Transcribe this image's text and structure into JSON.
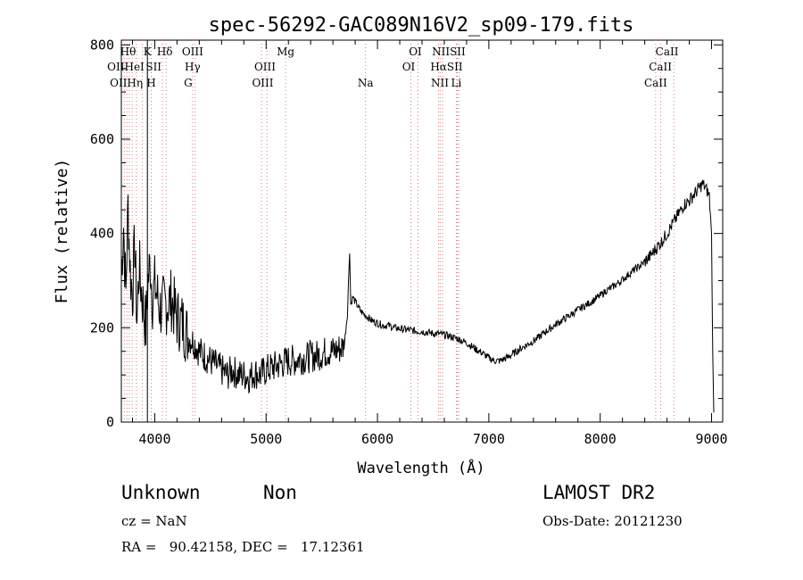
{
  "chart_data": {
    "type": "line",
    "title": "spec-56292-GAC089N16V2_sp09-179.fits",
    "xlabel": "Wavelength (Å)",
    "ylabel": "Flux (relative)",
    "xlim": [
      3700,
      9100
    ],
    "ylim": [
      0,
      810
    ],
    "x_ticks": [
      4000,
      5000,
      6000,
      7000,
      8000,
      9000
    ],
    "y_ticks": [
      0,
      200,
      400,
      600,
      800
    ],
    "grid": false,
    "series": [
      {
        "x": [
          3700,
          3720,
          3740,
          3760,
          3780,
          3800,
          3820,
          3840,
          3860,
          3880,
          3900,
          3920,
          3940,
          3960,
          3980,
          4000,
          4050,
          4100,
          4150,
          4200,
          4250,
          4300,
          4350,
          4400,
          4450,
          4500,
          4550,
          4600,
          4650,
          4700,
          4750,
          4800,
          4850,
          4900,
          4950,
          5000,
          5050,
          5100,
          5150,
          5200,
          5250,
          5300,
          5350,
          5400,
          5450,
          5500,
          5550,
          5600,
          5650,
          5700,
          5730,
          5750,
          5760,
          5780,
          5800,
          5850,
          5900,
          5950,
          6000,
          6050,
          6100,
          6150,
          6200,
          6250,
          6300,
          6350,
          6400,
          6450,
          6500,
          6550,
          6600,
          6650,
          6700,
          6750,
          6800,
          6850,
          6900,
          6950,
          7000,
          7050,
          7100,
          7150,
          7200,
          7250,
          7300,
          7350,
          7400,
          7450,
          7500,
          7550,
          7600,
          7650,
          7700,
          7750,
          7800,
          7850,
          7900,
          7950,
          8000,
          8050,
          8100,
          8150,
          8200,
          8250,
          8300,
          8350,
          8400,
          8450,
          8500,
          8550,
          8600,
          8650,
          8700,
          8750,
          8800,
          8850,
          8900,
          8920,
          8950,
          8980,
          9000,
          9010,
          9020
        ],
        "y": [
          310,
          420,
          270,
          460,
          320,
          270,
          380,
          220,
          330,
          280,
          240,
          200,
          300,
          340,
          260,
          290,
          240,
          250,
          260,
          220,
          210,
          180,
          170,
          150,
          140,
          130,
          120,
          110,
          100,
          110,
          100,
          100,
          95,
          105,
          100,
          110,
          115,
          120,
          125,
          130,
          130,
          135,
          135,
          140,
          140,
          145,
          150,
          150,
          155,
          160,
          230,
          365,
          250,
          265,
          255,
          235,
          225,
          215,
          210,
          205,
          205,
          200,
          198,
          196,
          195,
          193,
          192,
          190,
          188,
          187,
          185,
          182,
          178,
          174,
          168,
          160,
          152,
          145,
          136,
          130,
          130,
          135,
          142,
          150,
          158,
          165,
          172,
          180,
          190,
          198,
          207,
          215,
          222,
          230,
          238,
          245,
          252,
          260,
          268,
          278,
          285,
          293,
          302,
          312,
          322,
          330,
          340,
          352,
          368,
          382,
          400,
          420,
          440,
          460,
          470,
          485,
          500,
          505,
          495,
          480,
          400,
          150,
          20
        ]
      }
    ],
    "line_markers": {
      "top_row": [
        "Hθ",
        "K",
        "Hδ",
        "OIII",
        "Mg",
        "OI",
        "NIISII",
        "CaII"
      ],
      "second_row": [
        "OIIHeI",
        "SII",
        "Hγ",
        "OIII",
        "OI",
        "HαSII",
        "CaII"
      ],
      "third_row": [
        "OIIHη",
        "H",
        "G",
        "OIII",
        "Na",
        "NII",
        "Li",
        "CaII"
      ],
      "wavelengths": [
        3727,
        3750,
        3771,
        3798,
        3835,
        3889,
        3934,
        3968,
        4069,
        4102,
        4340,
        4363,
        4959,
        5007,
        5175,
        5893,
        6300,
        6364,
        6548,
        6563,
        6584,
        6717,
        6731,
        6708,
        8498,
        8542,
        8662
      ]
    }
  },
  "footer": {
    "class": "Unknown",
    "subclass": "Non",
    "survey": "LAMOST DR2",
    "cz": "cz = NaN",
    "obs_date": "Obs-Date: 20121230",
    "coords": "RA =   90.42158, DEC =   17.12361"
  }
}
